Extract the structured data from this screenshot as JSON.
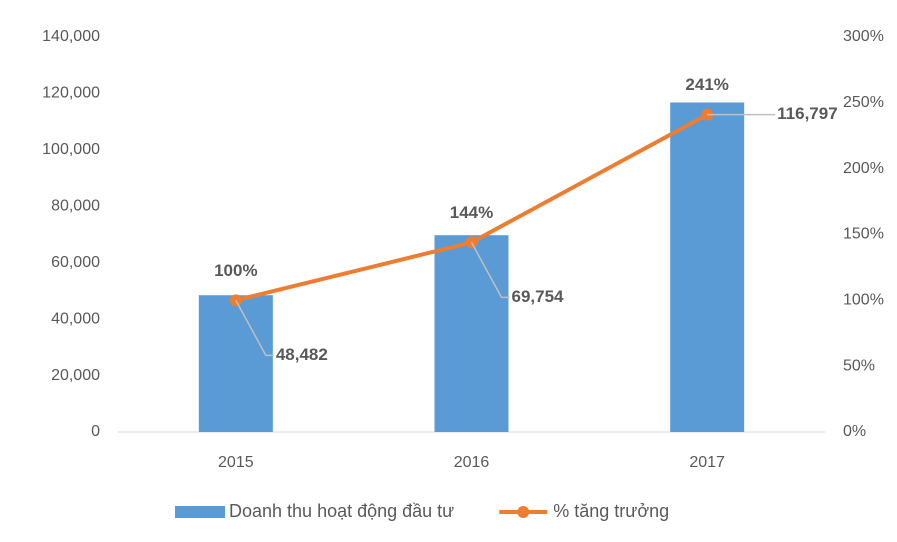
{
  "chart_data": {
    "type": "bar",
    "categories": [
      "2015",
      "2016",
      "2017"
    ],
    "series": [
      {
        "name": "Doanh thu hoạt động đầu tư",
        "color": "#5b9bd5",
        "type": "bar",
        "values": [
          48482,
          69754,
          116797
        ],
        "value_labels": [
          "48,482",
          "69,754",
          "116,797"
        ]
      },
      {
        "name": "% tăng trưởng",
        "color": "#ed7d31",
        "type": "line",
        "axis": "y2",
        "values": [
          100,
          144,
          241
        ],
        "value_labels": [
          "100%",
          "144%",
          "241%"
        ]
      }
    ],
    "ylim": [
      0,
      140000
    ],
    "yticks": [
      {
        "value": 0,
        "label": "0"
      },
      {
        "value": 20000,
        "label": "20,000"
      },
      {
        "value": 40000,
        "label": "40,000"
      },
      {
        "value": 60000,
        "label": "60,000"
      },
      {
        "value": 80000,
        "label": "80,000"
      },
      {
        "value": 100000,
        "label": "100,000"
      },
      {
        "value": 120000,
        "label": "120,000"
      },
      {
        "value": 140000,
        "label": "140,000"
      }
    ],
    "y2lim": [
      0,
      300
    ],
    "y2ticks": [
      {
        "value": 0,
        "label": "0%"
      },
      {
        "value": 50,
        "label": "50%"
      },
      {
        "value": 100,
        "label": "100%"
      },
      {
        "value": 150,
        "label": "150%"
      },
      {
        "value": 200,
        "label": "200%"
      },
      {
        "value": 250,
        "label": "250%"
      },
      {
        "value": 300,
        "label": "300%"
      }
    ],
    "legend": "bottom"
  }
}
